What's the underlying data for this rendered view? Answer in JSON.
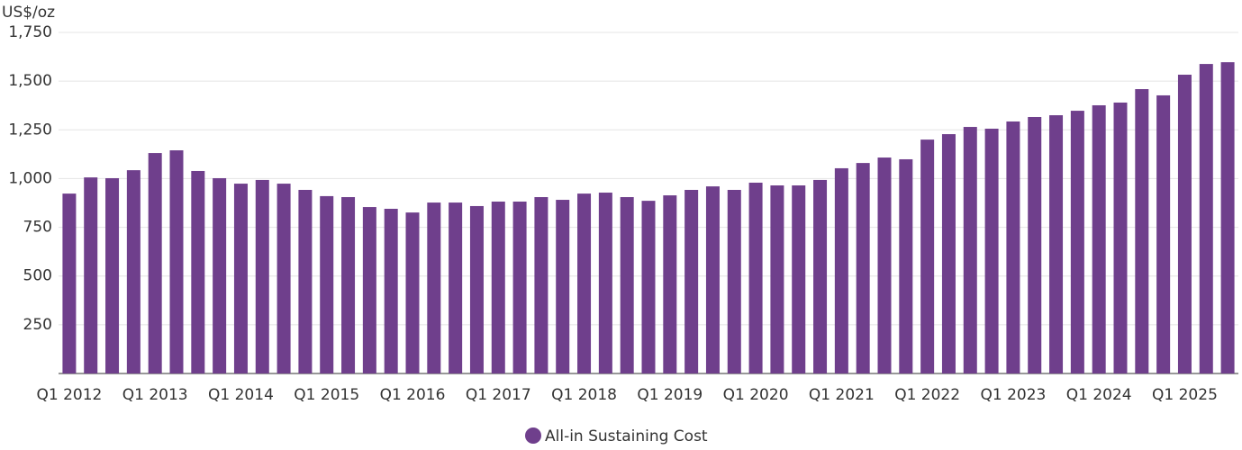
{
  "chart_data": {
    "type": "bar",
    "y_label": "US$/oz",
    "categories": [
      "Q1 2012",
      null,
      null,
      null,
      "Q1 2013",
      null,
      null,
      null,
      "Q1 2014",
      null,
      null,
      null,
      "Q1 2015",
      null,
      null,
      null,
      "Q1 2016",
      null,
      null,
      null,
      "Q1 2017",
      null,
      null,
      null,
      "Q1 2018",
      null,
      null,
      null,
      "Q1 2019",
      null,
      null,
      null,
      "Q1 2020",
      null,
      null,
      null,
      "Q1 2021",
      null,
      null,
      null,
      "Q1 2022",
      null,
      null,
      null,
      "Q1 2023",
      null,
      null,
      null,
      "Q1 2024",
      null,
      null,
      null,
      "Q1 2025",
      null,
      null
    ],
    "series": [
      {
        "name": "All-in Sustaining Cost",
        "color": "#6f3f8c",
        "values": [
          923,
          1006,
          1002,
          1043,
          1131,
          1145,
          1039,
          1002,
          974,
          993,
          974,
          942,
          910,
          905,
          854,
          845,
          826,
          877,
          877,
          859,
          882,
          882,
          905,
          891,
          923,
          928,
          905,
          886,
          914,
          942,
          960,
          942,
          979,
          965,
          965,
          993,
          1053,
          1080,
          1108,
          1099,
          1200,
          1228,
          1265,
          1256,
          1293,
          1316,
          1325,
          1348,
          1376,
          1390,
          1459,
          1427,
          1533,
          1588,
          1597
        ]
      }
    ],
    "ylim": [
      0,
      1750
    ],
    "yticks": [
      {
        "value": 250,
        "label": "250"
      },
      {
        "value": 500,
        "label": "500"
      },
      {
        "value": 750,
        "label": "750"
      },
      {
        "value": 1000,
        "label": "1,000"
      },
      {
        "value": 1250,
        "label": "1,250"
      },
      {
        "value": 1500,
        "label": "1,500"
      },
      {
        "value": 1750,
        "label": "1,750"
      }
    ],
    "grid": true
  }
}
